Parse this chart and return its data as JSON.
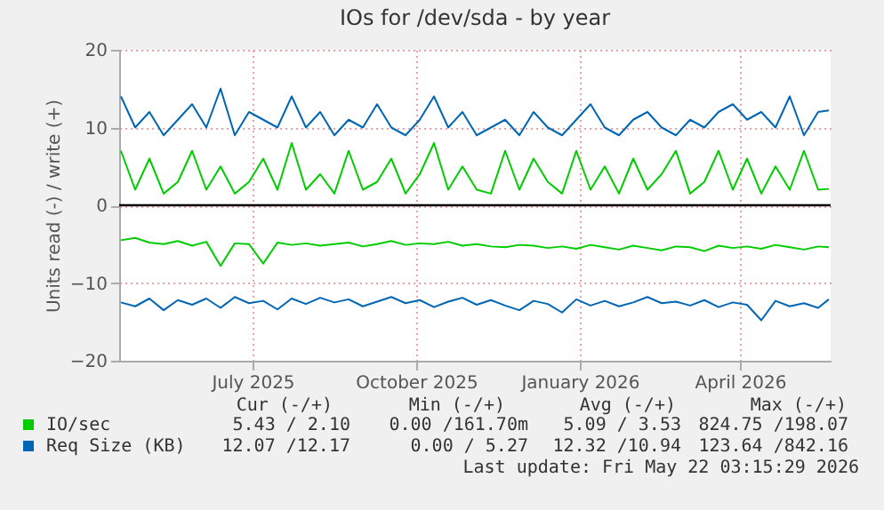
{
  "chart_data": {
    "type": "line",
    "title": "IOs for /dev/sda - by year",
    "ylabel": "Units read (-) / write (+)",
    "x": [
      "2025-04-18",
      "2025-04-26",
      "2025-05-04",
      "2025-05-12",
      "2025-05-20",
      "2025-05-28",
      "2025-06-05",
      "2025-06-13",
      "2025-06-21",
      "2025-06-29",
      "2025-07-07",
      "2025-07-15",
      "2025-07-23",
      "2025-07-31",
      "2025-08-08",
      "2025-08-16",
      "2025-08-24",
      "2025-09-01",
      "2025-09-09",
      "2025-09-17",
      "2025-09-25",
      "2025-10-03",
      "2025-10-11",
      "2025-10-19",
      "2025-10-27",
      "2025-11-04",
      "2025-11-12",
      "2025-11-20",
      "2025-11-28",
      "2025-12-06",
      "2025-12-14",
      "2025-12-22",
      "2025-12-30",
      "2026-01-07",
      "2026-01-15",
      "2026-01-23",
      "2026-01-31",
      "2026-02-08",
      "2026-02-16",
      "2026-02-24",
      "2026-03-04",
      "2026-03-12",
      "2026-03-20",
      "2026-03-28",
      "2026-04-05",
      "2026-04-13",
      "2026-04-21",
      "2026-04-29",
      "2026-05-07",
      "2026-05-15",
      "2026-05-21"
    ],
    "series": [
      {
        "name": "IO/sec",
        "color": "#00cc00",
        "values": [
          7,
          2,
          6,
          1.5,
          3,
          7,
          2,
          5,
          1.5,
          3,
          6,
          2,
          8,
          2,
          4,
          1.5,
          7,
          2,
          3,
          6,
          1.5,
          4,
          8,
          2,
          5,
          2,
          1.5,
          7,
          2,
          6,
          3,
          1.5,
          7,
          2,
          5,
          1.5,
          6,
          2,
          4,
          7,
          1.5,
          3,
          7,
          2,
          6,
          1.5,
          5,
          2,
          7,
          2,
          2.1
        ]
      },
      {
        "color": "#00cc00",
        "values": [
          -4.5,
          -4.2,
          -4.8,
          -5,
          -4.6,
          -5.2,
          -4.7,
          -7.8,
          -4.9,
          -5,
          -7.5,
          -4.8,
          -5.1,
          -4.9,
          -5.2,
          -5,
          -4.8,
          -5.3,
          -5,
          -4.6,
          -5.1,
          -4.9,
          -5,
          -4.7,
          -5.2,
          -5,
          -5.3,
          -5.4,
          -5.1,
          -5.2,
          -5.5,
          -5.3,
          -5.6,
          -5.1,
          -5.4,
          -5.7,
          -5.2,
          -5.5,
          -5.8,
          -5.3,
          -5.4,
          -5.9,
          -5.2,
          -5.5,
          -5.3,
          -5.6,
          -5.1,
          -5.4,
          -5.7,
          -5.3,
          -5.4
        ]
      },
      {
        "name": "Req Size (KB)",
        "color": "#0066b3",
        "values": [
          14,
          10,
          12,
          9,
          11,
          13,
          10,
          15,
          9,
          12,
          11,
          10,
          14,
          10,
          12,
          9,
          11,
          10,
          13,
          10,
          9,
          11,
          14,
          10,
          12,
          9,
          10,
          11,
          9,
          12,
          10,
          9,
          11,
          13,
          10,
          9,
          11,
          12,
          10,
          9,
          11,
          10,
          12,
          13,
          11,
          12,
          10,
          14,
          9,
          12,
          12.2
        ]
      },
      {
        "color": "#0066b3",
        "values": [
          -12.5,
          -13,
          -12,
          -13.5,
          -12.2,
          -12.8,
          -12,
          -13.2,
          -11.8,
          -12.6,
          -12.3,
          -13.4,
          -12,
          -12.7,
          -11.9,
          -12.5,
          -12.1,
          -13,
          -12.4,
          -11.8,
          -12.6,
          -12.2,
          -13.1,
          -12.4,
          -11.9,
          -12.8,
          -12.2,
          -12.9,
          -13.5,
          -12.3,
          -12.7,
          -13.8,
          -12.1,
          -12.9,
          -12.3,
          -13,
          -12.5,
          -11.8,
          -12.6,
          -12.4,
          -12.9,
          -12.2,
          -13.1,
          -12.5,
          -12.8,
          -14.8,
          -12.3,
          -13,
          -12.6,
          -13.2,
          -12.1
        ]
      }
    ],
    "xlim": [
      "2025-04-17",
      "2026-05-22"
    ],
    "xticks": [
      {
        "value": "2025-07-01",
        "label": "July 2025"
      },
      {
        "value": "2025-10-01",
        "label": "October 2025"
      },
      {
        "value": "2026-01-01",
        "label": "January 2026"
      },
      {
        "value": "2026-04-01",
        "label": "April 2026"
      }
    ],
    "ylim": [
      -20,
      20
    ],
    "yticks": [
      -20,
      -10,
      0,
      10,
      20
    ],
    "ref_lines": [
      {
        "axis": "y",
        "value": 0,
        "color": "#000000"
      }
    ],
    "grid": true,
    "legend": "bottom",
    "annotations": [
      "Cur (-/+)",
      "Min (-/+)",
      "Avg (-/+)",
      "Max (-/+)",
      "5.43 / 2.10",
      "0.00 /161.70m",
      "5.09 / 3.53",
      "824.75 /198.07",
      "12.07 /12.17",
      "0.00 / 5.27",
      "12.32 /10.94",
      "123.64 /842.16",
      "Last update: Fri May 22 03:15:29 2026"
    ]
  }
}
